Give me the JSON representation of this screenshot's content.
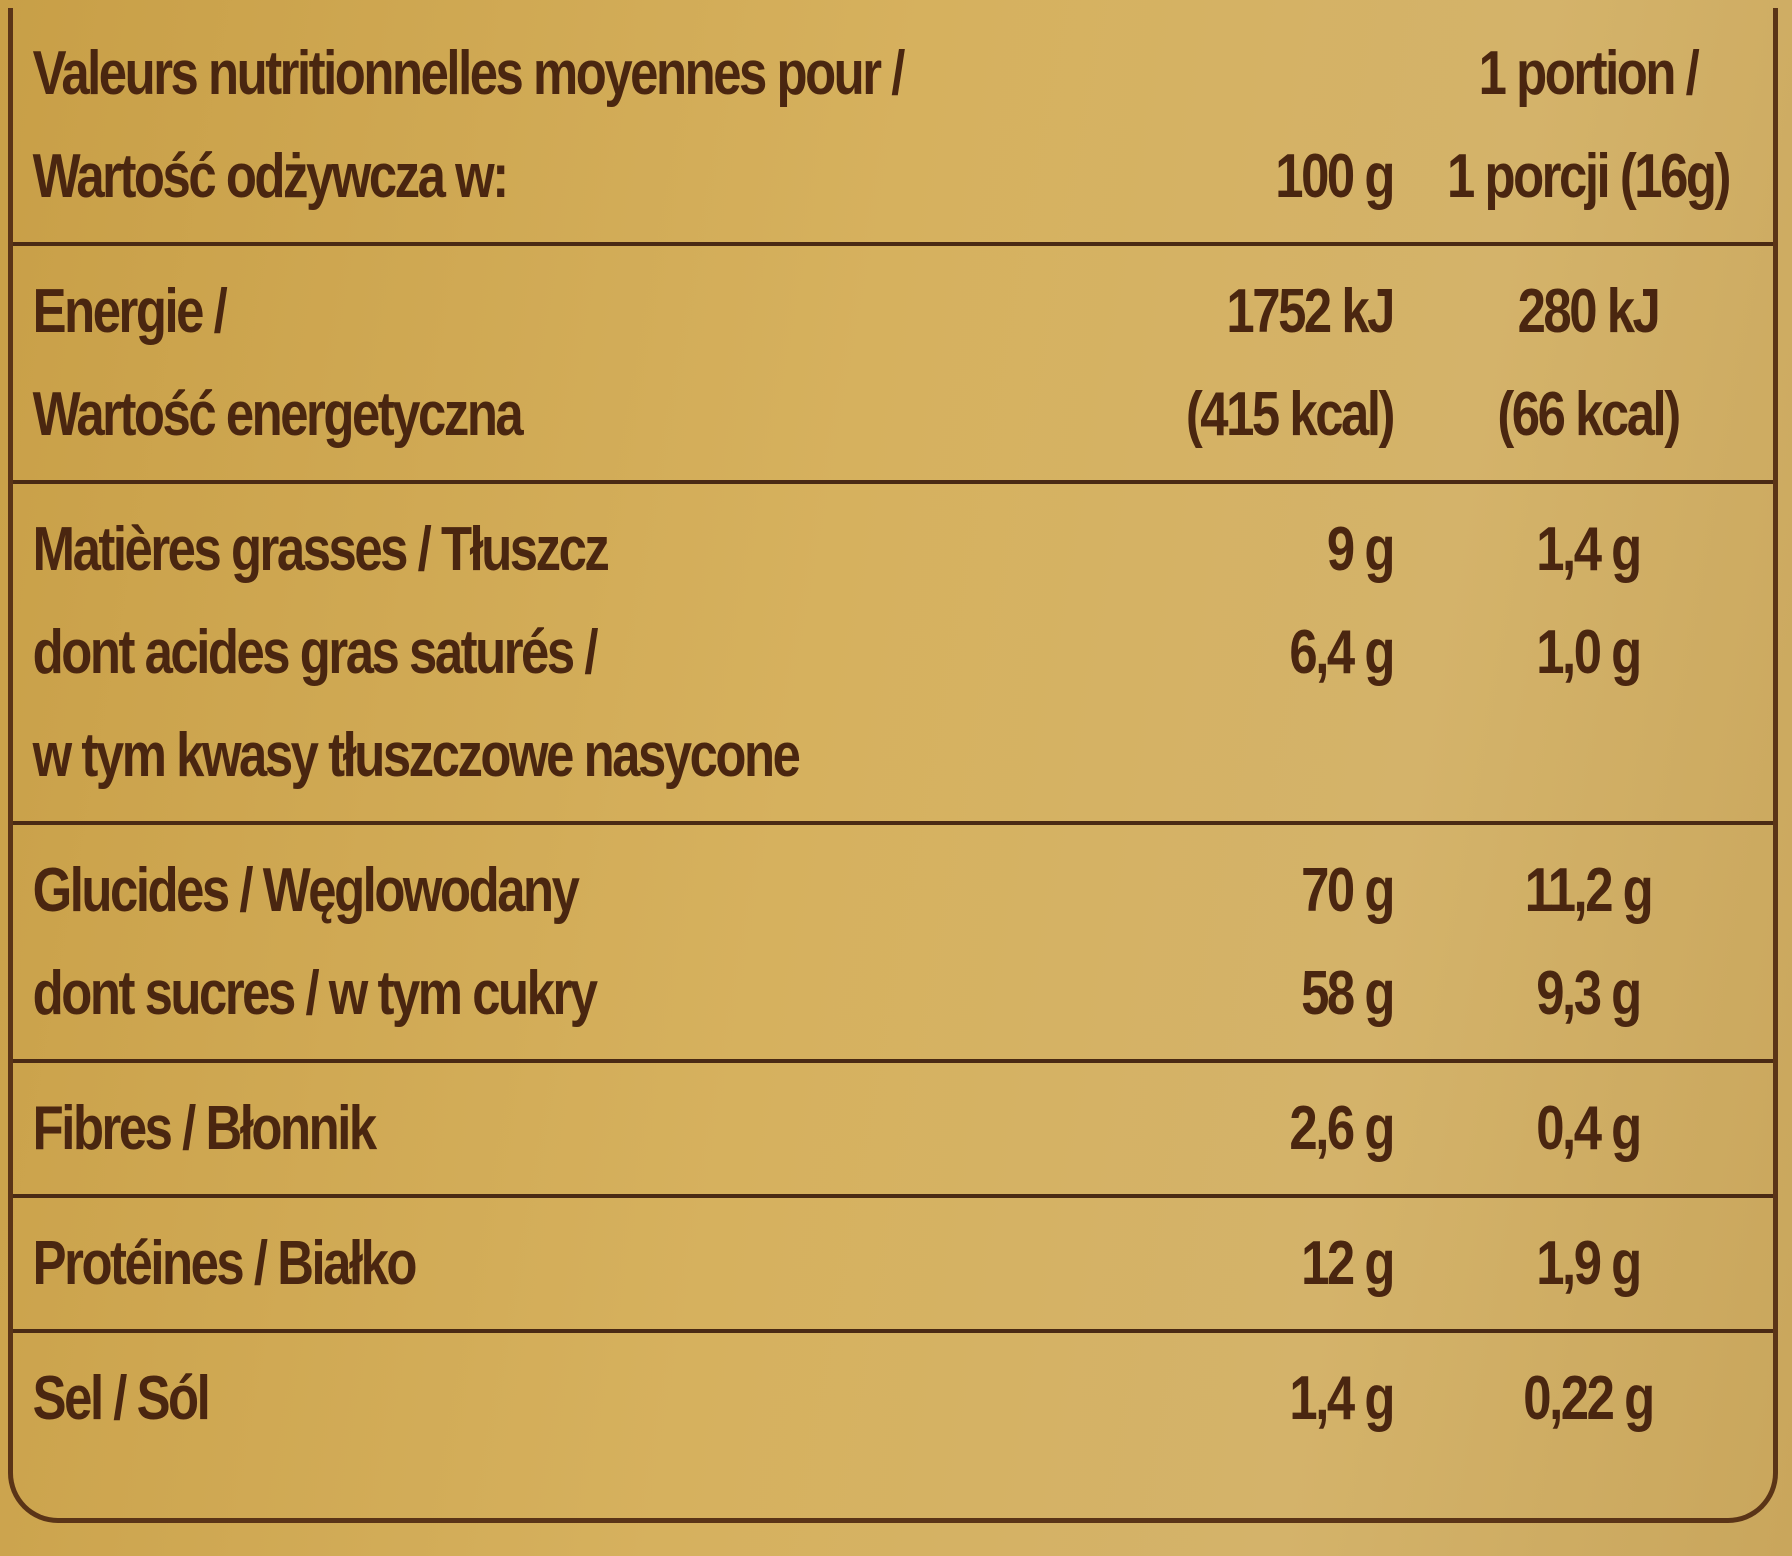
{
  "header": {
    "label": [
      "Valeurs nutritionnelles moyennes pour /",
      "Wartość odżywcza w:"
    ],
    "col1": "100 g",
    "col2": [
      "1 portion /",
      "1 porcji (16g)"
    ]
  },
  "rows": [
    [
      [
        "Energie /",
        "1752 kJ",
        "280 kJ"
      ],
      [
        "Wartość energetyczna",
        "(415 kcal)",
        "(66 kcal)"
      ]
    ],
    [
      [
        "Matières grasses / Tłuszcz",
        "9 g",
        "1,4 g"
      ],
      [
        "dont acides gras saturés /",
        "6,4 g",
        "1,0 g"
      ],
      [
        "w tym kwasy tłuszczowe nasycone"
      ]
    ],
    [
      [
        "Glucides / Węglowodany",
        "70 g",
        "11,2 g"
      ],
      [
        "dont sucres / w tym cukry",
        "58 g",
        "9,3 g"
      ]
    ],
    [
      [
        "Fibres / Błonnik",
        "2,6 g",
        "0,4 g"
      ]
    ],
    [
      [
        "Protéines / Białko",
        "12 g",
        "1,9 g"
      ]
    ],
    [
      [
        "Sel / Sól",
        "1,4 g",
        "0,22 g"
      ]
    ]
  ]
}
